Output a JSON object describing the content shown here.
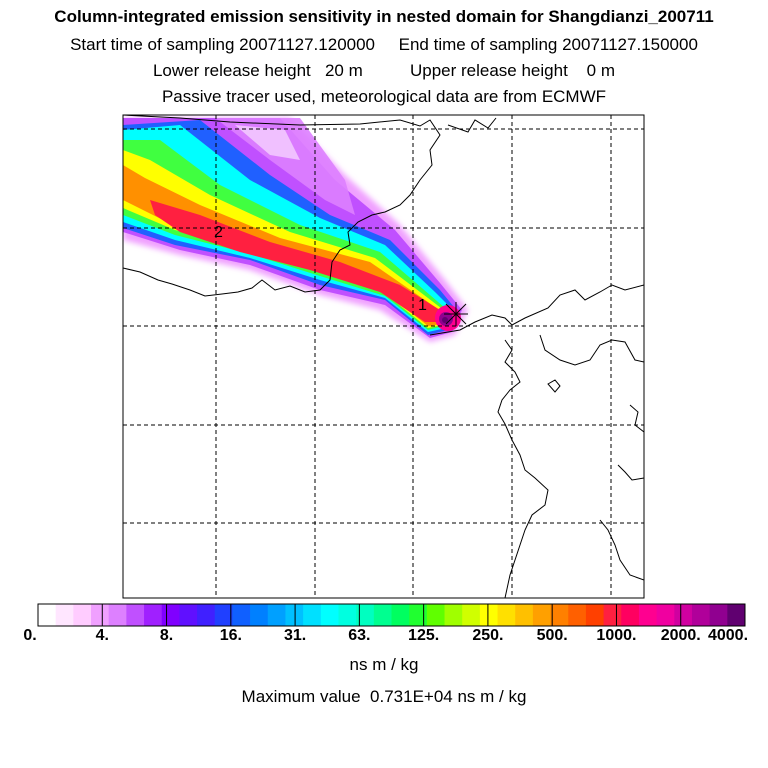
{
  "header": {
    "title": "Column-integrated emission sensitivity in nested domain for Shangdianzi_200711",
    "sampling_line": "Start time of sampling 20071127.120000     End time of sampling 20071127.150000",
    "release_line": "Lower release height   20 m          Upper release height    0 m",
    "tracer_line": "Passive tracer used, meteorological data are from ECMWF"
  },
  "map": {
    "markers": [
      {
        "label": "1"
      },
      {
        "label": "2"
      }
    ],
    "colors": {
      "plume_core": "#e8003c",
      "plume_outer": "#c000ff",
      "coastline": "#000000",
      "grid": "#000000"
    }
  },
  "colorbar": {
    "tick_labels": [
      "0.",
      "4.",
      "8.",
      "16.",
      "31.",
      "63.",
      "125.",
      "250.",
      "500.",
      "1000.",
      "2000.",
      "4000."
    ],
    "colors": [
      "#ffffff",
      "#ffe6ff",
      "#ffccff",
      "#f0a0ff",
      "#dd80ff",
      "#c050ff",
      "#a020ff",
      "#8000ff",
      "#6010ff",
      "#4020ff",
      "#2040ff",
      "#1060ff",
      "#0080ff",
      "#00a0ff",
      "#00c0ff",
      "#00e0ff",
      "#00ffff",
      "#00ffe0",
      "#00ffc0",
      "#00ff90",
      "#00ff60",
      "#20ff30",
      "#60ff00",
      "#a0ff00",
      "#d0ff00",
      "#ffff00",
      "#ffe000",
      "#ffc000",
      "#ffa000",
      "#ff8000",
      "#ff6000",
      "#ff4000",
      "#ff2040",
      "#ff0060",
      "#ff0090",
      "#f000a0",
      "#d000a0",
      "#b0009a",
      "#900090",
      "#600070"
    ],
    "unit_label": "ns m / kg",
    "max_label": "Maximum value  0.731E+04 ns m / kg"
  }
}
